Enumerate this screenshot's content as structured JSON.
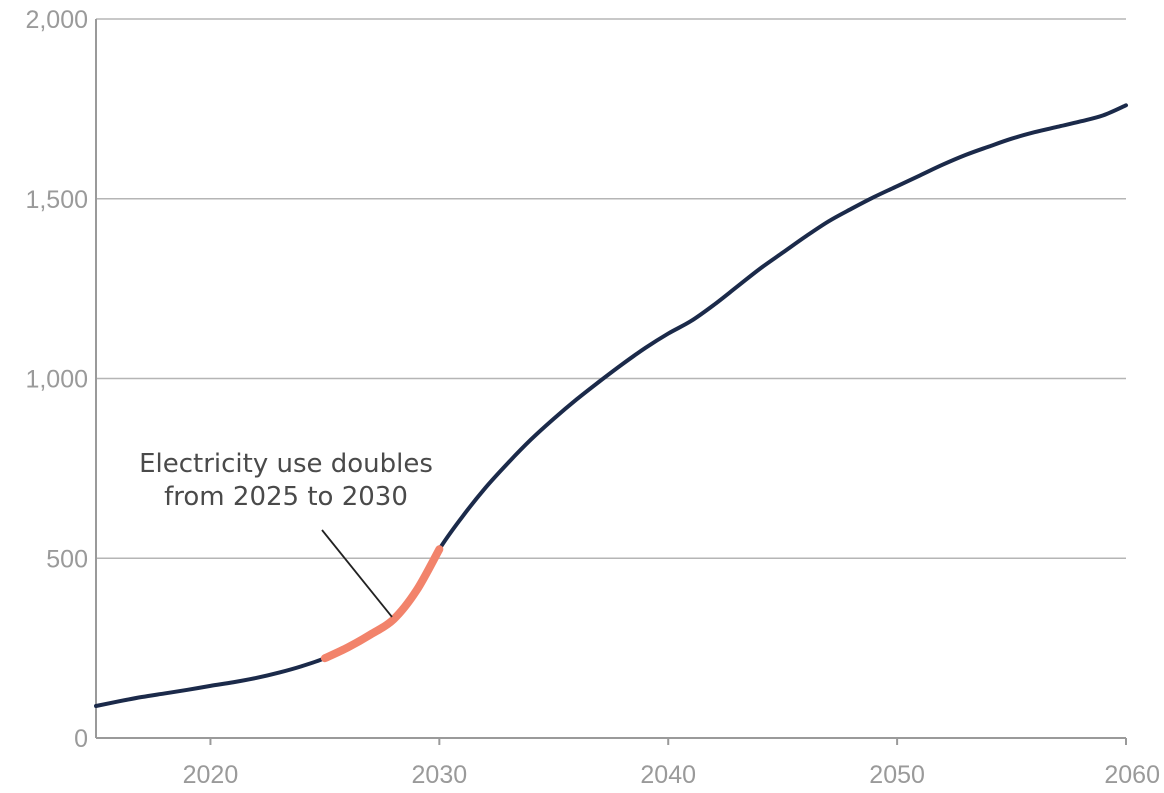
{
  "colors": {
    "series_line": "#1b2a4a",
    "highlight": "#f2836b",
    "gridline": "#b5b5b5",
    "axis": "#9a9a9a",
    "tick_text": "#9a9a9a",
    "annotation_text": "#4a4a4a",
    "annotation_pointer": "#222222"
  },
  "chart_data": {
    "type": "line",
    "title": "",
    "xlabel": "",
    "ylabel": "",
    "xlim": [
      2015,
      2060
    ],
    "ylim": [
      0,
      2000
    ],
    "grid": "horizontal",
    "legend": "none",
    "x_ticks": [
      2020,
      2030,
      2040,
      2050,
      2060
    ],
    "x_tick_labels": [
      "2020",
      "2030",
      "2040",
      "2050",
      "2060"
    ],
    "y_ticks": [
      0,
      500,
      1000,
      1500,
      2000
    ],
    "y_tick_labels": [
      "0",
      "500",
      "1,000",
      "1,500",
      "2,000"
    ],
    "series": [
      {
        "x": [
          2015,
          2016,
          2017,
          2018,
          2019,
          2020,
          2021,
          2022,
          2023,
          2024,
          2025,
          2026,
          2027,
          2028,
          2029,
          2030,
          2031,
          2032,
          2033,
          2034,
          2035,
          2036,
          2037,
          2038,
          2039,
          2040,
          2041,
          2042,
          2043,
          2044,
          2045,
          2046,
          2047,
          2048,
          2049,
          2050,
          2051,
          2052,
          2053,
          2054,
          2055,
          2056,
          2057,
          2058,
          2059,
          2060
        ],
        "y": [
          89,
          102,
          114,
          124,
          134,
          145,
          155,
          167,
          182,
          200,
          222,
          252,
          288,
          330,
          410,
          525,
          615,
          695,
          765,
          830,
          888,
          942,
          992,
          1040,
          1085,
          1125,
          1160,
          1205,
          1255,
          1305,
          1350,
          1395,
          1437,
          1472,
          1505,
          1535,
          1565,
          1595,
          1622,
          1645,
          1667,
          1685,
          1700,
          1715,
          1732,
          1760
        ]
      }
    ],
    "highlight": {
      "x_range": [
        2025,
        2030
      ]
    },
    "annotations": [
      {
        "lines": [
          "Electricity use doubles",
          "from 2025 to 2030"
        ],
        "points_to": {
          "x": 2027.8,
          "y": 320
        }
      }
    ]
  }
}
